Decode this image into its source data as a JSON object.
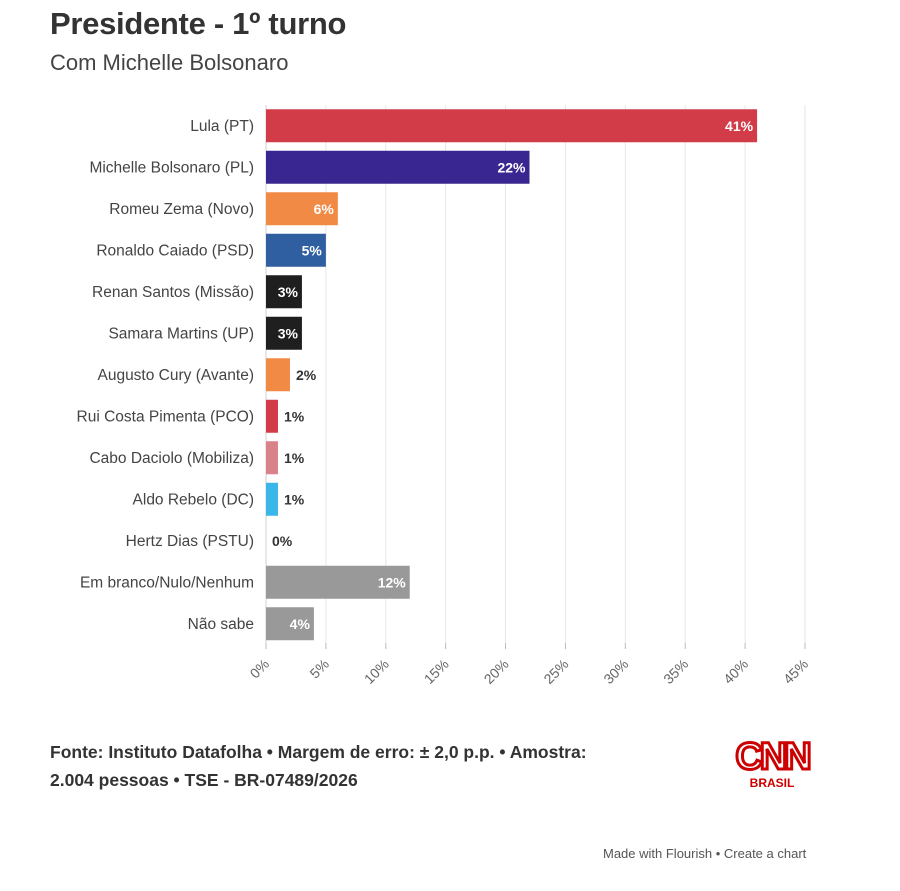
{
  "chart_data": {
    "type": "bar",
    "orientation": "horizontal",
    "title": "Presidente - 1º turno",
    "subtitle": "Com Michelle Bolsonaro",
    "categories": [
      "Lula (PT)",
      "Michelle Bolsonaro (PL)",
      "Romeu Zema (Novo)",
      "Ronaldo Caiado (PSD)",
      "Renan Santos (Missão)",
      "Samara Martins (UP)",
      "Augusto Cury (Avante)",
      "Rui Costa Pimenta (PCO)",
      "Cabo Daciolo (Mobiliza)",
      "Aldo Rebelo (DC)",
      "Hertz Dias (PSTU)",
      "Em branco/Nulo/Nenhum",
      "Não sabe"
    ],
    "values": [
      41,
      22,
      6,
      5,
      3,
      3,
      2,
      1,
      1,
      1,
      0,
      12,
      4
    ],
    "value_labels": [
      "41%",
      "22%",
      "6%",
      "5%",
      "3%",
      "3%",
      "2%",
      "1%",
      "1%",
      "1%",
      "0%",
      "12%",
      "4%"
    ],
    "colors": [
      "#d13c48",
      "#3a2691",
      "#f08a45",
      "#2f5fa0",
      "#1f1f1f",
      "#1f1f1f",
      "#f08a45",
      "#d13c48",
      "#d9828a",
      "#3bb6e8",
      "#cccccc",
      "#999999",
      "#999999"
    ],
    "xlim": [
      0,
      45
    ],
    "xticks": [
      0,
      5,
      10,
      15,
      20,
      25,
      30,
      35,
      40,
      45
    ],
    "xtick_labels": [
      "0%",
      "5%",
      "10%",
      "15%",
      "20%",
      "25%",
      "30%",
      "35%",
      "40%",
      "45%"
    ],
    "grid": true
  },
  "footer": {
    "source_line1": "Fonte: Instituto Datafolha • Margem de erro: ± 2,0 p.p. • Amostra:",
    "source_line2": "2.004 pessoas • TSE - BR-07489/2026"
  },
  "logo": {
    "brand": "CNN",
    "sub": "BRASIL",
    "color": "#cc0000"
  },
  "credit": {
    "made_with": "Made with Flourish",
    "separator": " • ",
    "create": "Create a chart"
  }
}
